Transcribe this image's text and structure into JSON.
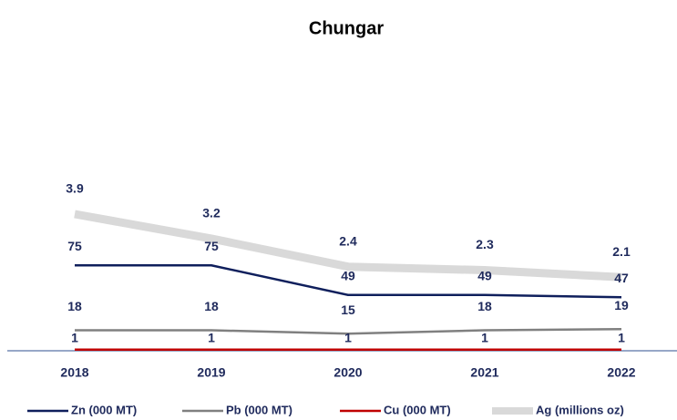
{
  "chart_data": {
    "type": "line",
    "title": "Chungar",
    "categories": [
      "2018",
      "2019",
      "2020",
      "2021",
      "2022"
    ],
    "series": [
      {
        "name": "Zn (000 MT)",
        "color": "#0f1f5c",
        "values": [
          75,
          75,
          49,
          49,
          47
        ]
      },
      {
        "name": "Pb (000 MT)",
        "color": "#808080",
        "values": [
          18,
          18,
          15,
          18,
          19
        ]
      },
      {
        "name": "Cu (000 MT)",
        "color": "#c00000",
        "values": [
          1,
          1,
          1,
          1,
          1
        ]
      },
      {
        "name": "Ag (millions oz)",
        "color": "#d9d9d9",
        "values": [
          3.9,
          3.2,
          2.4,
          2.3,
          2.1
        ],
        "axis": "y2"
      }
    ],
    "ylim": [
      0,
      200
    ],
    "y2lim": [
      0,
      6.5
    ],
    "legend": "bottom"
  }
}
